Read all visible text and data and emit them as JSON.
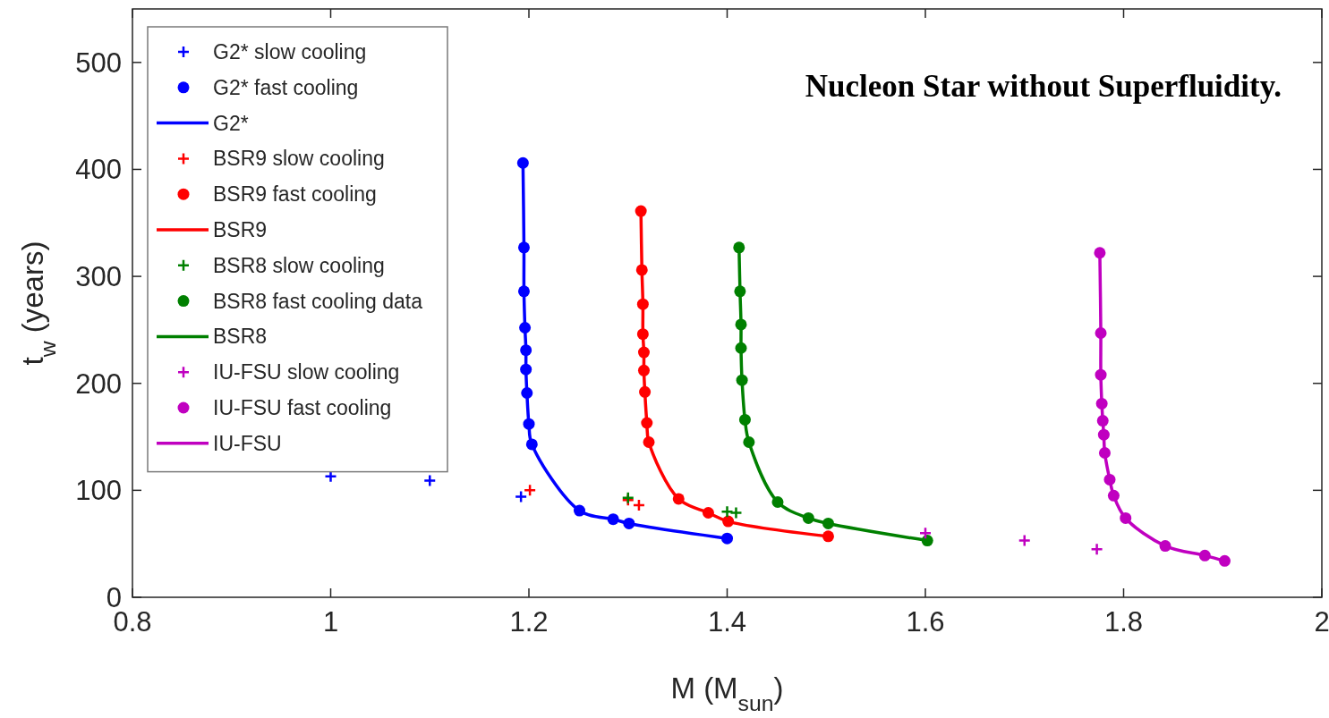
{
  "chart_data": {
    "type": "scatter",
    "title": "Nucleon Star without Superfluidity.",
    "xlabel": "M (M$_{sun}$)",
    "ylabel": "t$_{w}$ (years)",
    "xlim": [
      0.8,
      2
    ],
    "ylim": [
      0,
      550
    ],
    "xticks": [
      {
        "value": 0.8,
        "label": "0.8"
      },
      1,
      {
        "value": 1.2,
        "label": "1.2"
      },
      {
        "value": 1.4,
        "label": "1.4"
      },
      {
        "value": 1.6,
        "label": "1.6"
      },
      {
        "value": 1.8,
        "label": "1.8"
      },
      2
    ],
    "yticks": [
      0,
      100,
      200,
      300,
      400,
      500
    ],
    "grid": false,
    "legend": "top left",
    "series": [
      {
        "name": "G2* slow cooling",
        "marker": "cross",
        "color": "#0000ff",
        "x": [
          1.0,
          1.1,
          1.192
        ],
        "values": [
          113,
          109,
          94
        ]
      },
      {
        "name": "G2* fast cooling",
        "marker": "circle",
        "color": "#0000ff",
        "x": [
          1.194,
          1.195,
          1.195,
          1.196,
          1.197,
          1.197,
          1.198,
          1.2,
          1.203,
          1.251,
          1.285,
          1.301,
          1.4
        ],
        "values": [
          406,
          327,
          286,
          252,
          231,
          213,
          191,
          162,
          143,
          81,
          73,
          69,
          55
        ]
      },
      {
        "name": "G2*",
        "type": "line",
        "marker": "none",
        "line_style": "solid",
        "color": "#0000ff",
        "x": [
          1.194,
          1.195,
          1.195,
          1.196,
          1.197,
          1.197,
          1.198,
          1.2,
          1.203,
          1.251,
          1.285,
          1.301,
          1.4
        ],
        "values": [
          406,
          327,
          286,
          252,
          231,
          213,
          191,
          162,
          143,
          81,
          73,
          69,
          55
        ]
      },
      {
        "name": "BSR9 slow cooling",
        "marker": "cross",
        "color": "#ff0000",
        "x": [
          1.201,
          1.3,
          1.311
        ],
        "values": [
          100,
          91,
          86
        ]
      },
      {
        "name": "BSR9 fast cooling",
        "marker": "circle",
        "color": "#ff0000",
        "x": [
          1.313,
          1.314,
          1.315,
          1.315,
          1.316,
          1.316,
          1.317,
          1.319,
          1.321,
          1.351,
          1.381,
          1.401,
          1.502
        ],
        "values": [
          361,
          306,
          274,
          246,
          229,
          212,
          192,
          163,
          145,
          92,
          79,
          71,
          57
        ]
      },
      {
        "name": "BSR9",
        "type": "line",
        "marker": "none",
        "line_style": "solid",
        "color": "#ff0000",
        "x": [
          1.313,
          1.314,
          1.315,
          1.315,
          1.316,
          1.316,
          1.317,
          1.319,
          1.321,
          1.351,
          1.381,
          1.401,
          1.502
        ],
        "values": [
          361,
          306,
          274,
          246,
          229,
          212,
          192,
          163,
          145,
          92,
          79,
          71,
          57
        ]
      },
      {
        "name": "BSR8 slow cooling",
        "marker": "cross",
        "color": "#008000",
        "x": [
          1.3,
          1.4,
          1.409
        ],
        "values": [
          93,
          80,
          79
        ]
      },
      {
        "name": "BSR8 fast cooling data",
        "marker": "circle",
        "color": "#008000",
        "x": [
          1.412,
          1.413,
          1.414,
          1.414,
          1.415,
          1.418,
          1.422,
          1.451,
          1.482,
          1.502,
          1.602
        ],
        "values": [
          327,
          286,
          255,
          233,
          203,
          166,
          145,
          89,
          74,
          69,
          53
        ]
      },
      {
        "name": "BSR8",
        "type": "line",
        "marker": "none",
        "line_style": "solid",
        "color": "#008000",
        "x": [
          1.412,
          1.413,
          1.414,
          1.414,
          1.415,
          1.418,
          1.422,
          1.451,
          1.482,
          1.502,
          1.602
        ],
        "values": [
          327,
          286,
          255,
          233,
          203,
          166,
          145,
          89,
          74,
          69,
          53
        ]
      },
      {
        "name": "IU-FSU slow cooling",
        "marker": "cross",
        "color": "#c000c0",
        "x": [
          1.6,
          1.7,
          1.773
        ],
        "values": [
          60,
          53,
          45
        ]
      },
      {
        "name": "IU-FSU fast cooling",
        "marker": "circle",
        "color": "#c000c0",
        "x": [
          1.776,
          1.777,
          1.777,
          1.778,
          1.779,
          1.78,
          1.781,
          1.786,
          1.79,
          1.802,
          1.842,
          1.882,
          1.902
        ],
        "values": [
          322,
          247,
          208,
          181,
          165,
          152,
          135,
          110,
          95,
          74,
          48,
          39,
          34
        ]
      },
      {
        "name": "IU-FSU",
        "type": "line",
        "marker": "none",
        "line_style": "solid",
        "color": "#c000c0",
        "x": [
          1.776,
          1.777,
          1.777,
          1.778,
          1.779,
          1.78,
          1.781,
          1.786,
          1.79,
          1.802,
          1.842,
          1.882,
          1.902
        ],
        "values": [
          322,
          247,
          208,
          181,
          165,
          152,
          135,
          110,
          95,
          74,
          48,
          39,
          34
        ]
      }
    ]
  }
}
